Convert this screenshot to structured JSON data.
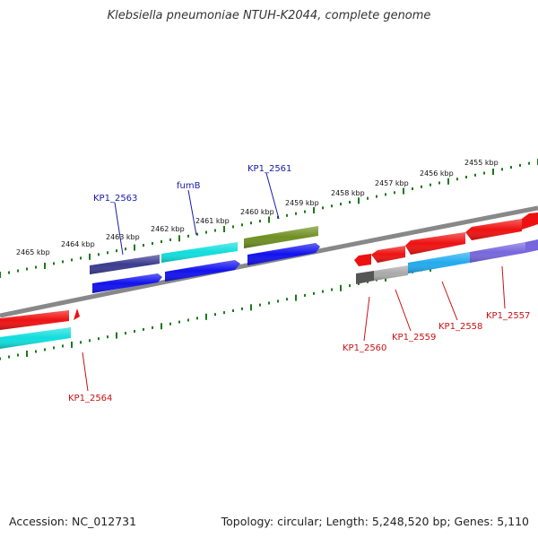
{
  "title": "Klebsiella pneumoniae NTUH-K2044, complete genome",
  "footer": {
    "accession": "Accession: NC_012731",
    "summary": "Topology: circular; Length: 5,248,520 bp; Genes: 5,110"
  },
  "axis_labels": [
    "2465 kbp",
    "2464 kbp",
    "2463 kbp",
    "2462 kbp",
    "2461 kbp",
    "2460 kbp",
    "2459 kbp",
    "2458 kbp",
    "2457 kbp",
    "2456 kbp",
    "2455 kbp"
  ],
  "gene_labels_top": [
    "KP1_2563",
    "fumB",
    "KP1_2561"
  ],
  "gene_labels_bottom": [
    "KP1_2564",
    "KP1_2560",
    "KP1_2559",
    "KP1_2558",
    "KP1_2557"
  ],
  "colors": {
    "forward_red": "#ee1111",
    "cyan": "#11dddd",
    "blue": "#1111ee",
    "navy": "#3a3a90",
    "olive": "#6f8f22",
    "sky": "#22aaee",
    "lavender": "#7766dd",
    "gray": "#aaaaaa",
    "darkgray": "#555555",
    "tick_green": "#1a7a1a",
    "backbone": "#888888"
  }
}
